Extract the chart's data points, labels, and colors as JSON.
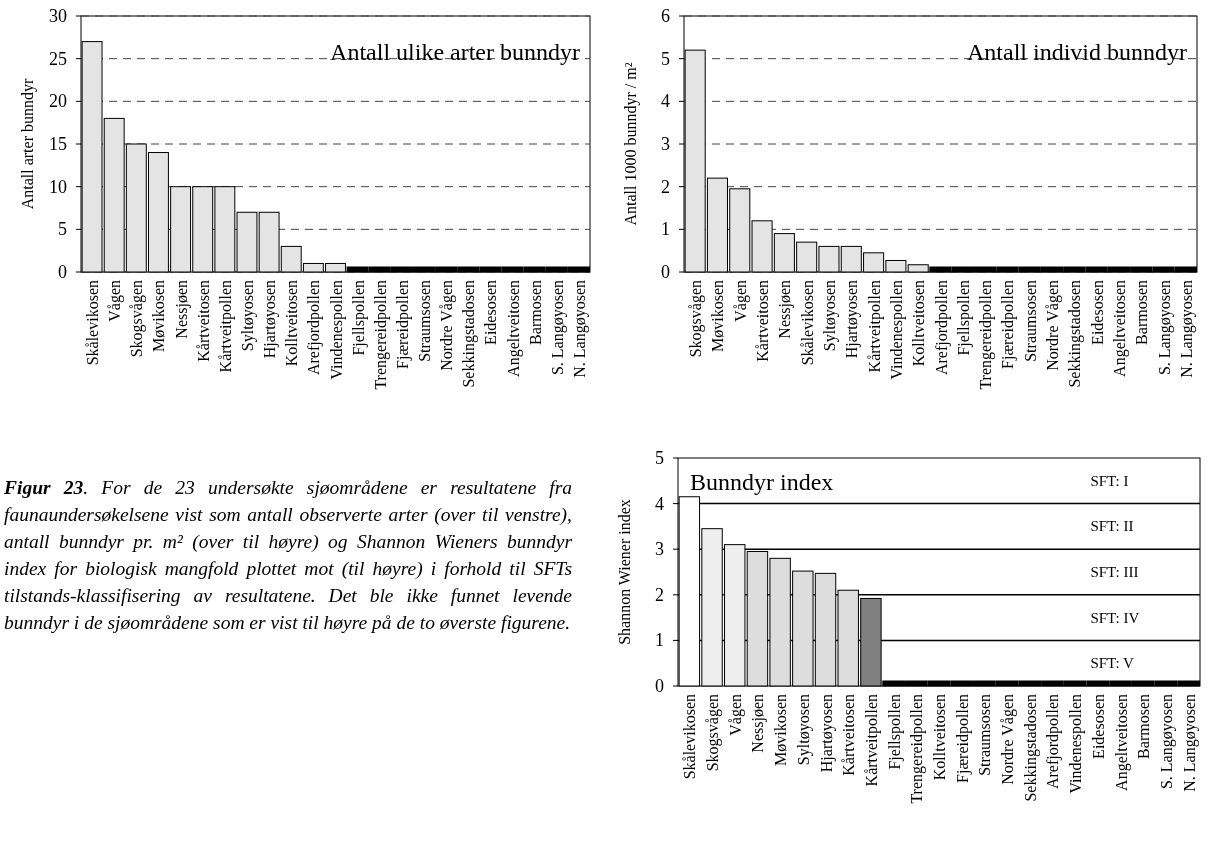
{
  "chart_data": [
    {
      "type": "bar",
      "title": "Antall ulike arter bunndyr",
      "ylabel": "Antall arter bunndyr",
      "categories": [
        "Skålevikosen",
        "Vågen",
        "Skogsvågen",
        "Møvikosen",
        "Nessjøen",
        "Kårtveitosen",
        "Kårtveitpollen",
        "Syltøyosen",
        "Hjartøyosen",
        "Kolltveitosen",
        "Arefjordpollen",
        "Vindenespollen",
        "Fjellspollen",
        "Trengereidpollen",
        "Fjæreidpollen",
        "Straumsosen",
        "Nordre Vågen",
        "Sekkingstadosen",
        "Eidesosen",
        "Angeltveitosen",
        "Barmosen",
        "S. Langøyosen",
        "N. Langøyosen"
      ],
      "values": [
        27,
        18,
        15,
        14,
        10,
        10,
        10,
        7,
        7,
        3,
        1,
        1,
        0,
        0,
        0,
        0,
        0,
        0,
        0,
        0,
        0,
        0,
        0
      ],
      "colors": [
        "#e4e4e4",
        "#e4e4e4",
        "#e4e4e4",
        "#e4e4e4",
        "#e4e4e4",
        "#e4e4e4",
        "#e4e4e4",
        "#e4e4e4",
        "#e4e4e4",
        "#e4e4e4",
        "#e4e4e4",
        "#e4e4e4",
        "#000000",
        "#000000",
        "#000000",
        "#000000",
        "#000000",
        "#000000",
        "#000000",
        "#000000",
        "#000000",
        "#000000",
        "#000000"
      ],
      "ylim": [
        0,
        30
      ],
      "yticks": [
        0,
        5,
        10,
        15,
        20,
        25,
        30
      ],
      "grid": "y"
    },
    {
      "type": "bar",
      "title": "Antall individ bunndyr",
      "ylabel": "Antall 1000 bunndyr / m²",
      "categories": [
        "Skogsvågen",
        "Møvikosen",
        "Vågen",
        "Kårtveitosen",
        "Nessjøen",
        "Skålevikosen",
        "Syltøyosen",
        "Hjartøyosen",
        "Kårtveitpollen",
        "Vindenespollen",
        "Kolltveitosen",
        "Arefjordpollen",
        "Fjellspollen",
        "Trengereidpollen",
        "Fjæreidpollen",
        "Straumsosen",
        "Nordre Vågen",
        "Sekkingstadosen",
        "Eidesosen",
        "Angeltveitosen",
        "Barmosen",
        "S. Langøyosen",
        "N. Langøyosen"
      ],
      "values": [
        5.2,
        2.2,
        1.95,
        1.2,
        0.9,
        0.7,
        0.6,
        0.6,
        0.45,
        0.27,
        0.17,
        0,
        0,
        0,
        0,
        0,
        0,
        0,
        0,
        0,
        0,
        0,
        0
      ],
      "colors": [
        "#e4e4e4",
        "#e4e4e4",
        "#e4e4e4",
        "#e4e4e4",
        "#e4e4e4",
        "#e4e4e4",
        "#e4e4e4",
        "#e4e4e4",
        "#e4e4e4",
        "#e4e4e4",
        "#e4e4e4",
        "#000000",
        "#000000",
        "#000000",
        "#000000",
        "#000000",
        "#000000",
        "#000000",
        "#000000",
        "#000000",
        "#000000",
        "#000000",
        "#000000"
      ],
      "ylim": [
        0,
        6
      ],
      "yticks": [
        0,
        1,
        2,
        3,
        4,
        5,
        6
      ],
      "grid": "y"
    },
    {
      "type": "other",
      "title": "Figur 23",
      "annotations": [
        ". For de 23 undersøkte sjøområdene er resultatene fra faunaundersøkelsene vist som antall observerte arter (over til venstre), antall bunndyr pr. m² (over til høyre) og Shannon Wieners bunndyr index for biologisk mangfold plottet mot (til høyre) i forhold til SFTs tilstands-klassifisering av resultatene. Det ble ikke funnet levende bunndyr i de  sjøområdene som er vist til høyre på de to øverste figurene."
      ]
    },
    {
      "type": "bar",
      "title": "Bunndyr index",
      "ylabel": "Shannon Wiener index",
      "categories": [
        "Skålevikosen",
        "Skogsvågen",
        "Vågen",
        "Nessjøen",
        "Møvikosen",
        "Syltøyosen",
        "Hjartøyosen",
        "Kårtveitosen",
        "Kårtveitpollen",
        "Fjellspollen",
        "Trengereidpollen",
        "Kolltveitosen",
        "Fjæreidpollen",
        "Straumsosen",
        "Nordre Vågen",
        "Sekkingstadosen",
        "Arefjordpollen",
        "Vindenespollen",
        "Eidesosen",
        "Angeltveitosen",
        "Barmosen",
        "S. Langøyosen",
        "N. Langøyosen"
      ],
      "values": [
        4.15,
        3.45,
        3.1,
        2.95,
        2.8,
        2.52,
        2.47,
        2.1,
        1.92,
        0,
        0,
        0,
        0,
        0,
        0,
        0,
        0,
        0,
        0,
        0,
        0,
        0,
        0
      ],
      "colors": [
        "#ffffff",
        "#eeeeee",
        "#eeeeee",
        "#dddddd",
        "#dddddd",
        "#dddddd",
        "#dddddd",
        "#dddddd",
        "#808080",
        "#000000",
        "#000000",
        "#000000",
        "#000000",
        "#000000",
        "#000000",
        "#000000",
        "#000000",
        "#000000",
        "#000000",
        "#000000",
        "#000000",
        "#000000",
        "#000000"
      ],
      "ylim": [
        0,
        5
      ],
      "yticks": [
        0,
        1,
        2,
        3,
        4,
        5
      ],
      "ref_lines": [
        {
          "axis": "y",
          "value": 4
        },
        {
          "axis": "y",
          "value": 3
        },
        {
          "axis": "y",
          "value": 2
        },
        {
          "axis": "y",
          "value": 1
        }
      ],
      "annotations": [
        "SFT: I",
        "SFT: II",
        "SFT: III",
        "SFT: IV",
        "SFT: V"
      ]
    }
  ]
}
